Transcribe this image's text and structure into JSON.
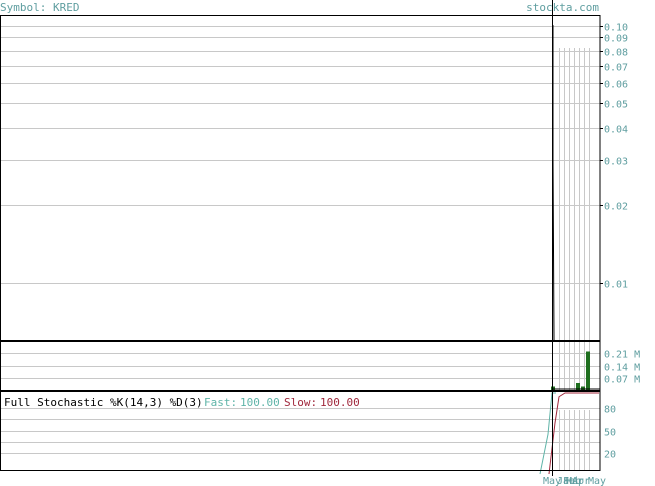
{
  "header": {
    "symbol_label": "Symbol: KRED",
    "site_label": "stockta.com"
  },
  "colors": {
    "label_teal": "#5f9ea0",
    "grid": "#c8c8c8",
    "frame": "#000000",
    "price_line": "#000000",
    "volume_bar": "#1e6e1e",
    "fast_line": "#5fb4a8",
    "slow_line": "#a0283c"
  },
  "chart_data": [
    {
      "type": "line",
      "name": "price",
      "y_scale": "log",
      "y_ticks": [
        0.1,
        0.09,
        0.08,
        0.07,
        0.06,
        0.05,
        0.04,
        0.03,
        0.02,
        0.01
      ],
      "y_tick_labels": [
        "0.10",
        "0.09",
        "0.08",
        "0.07",
        "0.06",
        "0.05",
        "0.04",
        "0.03",
        "0.02",
        "0.01"
      ],
      "ylim": [
        0.006,
        0.11
      ],
      "grid": true,
      "x_labels": [
        "Mar",
        "Apr",
        "May"
      ],
      "x_label_text": [
        "May",
        "Jan",
        "Feb",
        "Mar",
        "Apr",
        "May"
      ]
    },
    {
      "type": "bar",
      "name": "volume",
      "y_ticks": [
        0.21,
        0.14,
        0.07
      ],
      "y_tick_labels": [
        "0.21 M",
        "0.14 M",
        "0.07 M"
      ],
      "ylim": [
        0,
        0.28
      ],
      "values": [
        0.02,
        0.0,
        0.0,
        0.0,
        0.0,
        0.0,
        0.04,
        0.02,
        0.22
      ],
      "grid": true
    },
    {
      "type": "line",
      "name": "stochastic",
      "title": "Full Stochastic %K(14,3) %D(3)",
      "fast_label": "Fast:",
      "fast_value": "100.00",
      "slow_label": "Slow:",
      "slow_value": "100.00",
      "y_ticks": [
        80,
        50,
        20
      ],
      "y_tick_labels": [
        "80",
        "50",
        "20"
      ],
      "ylim": [
        0,
        100
      ],
      "grid": true
    }
  ],
  "footer": {
    "x_axis_labels": [
      "Mar",
      "Apr",
      "May"
    ]
  }
}
